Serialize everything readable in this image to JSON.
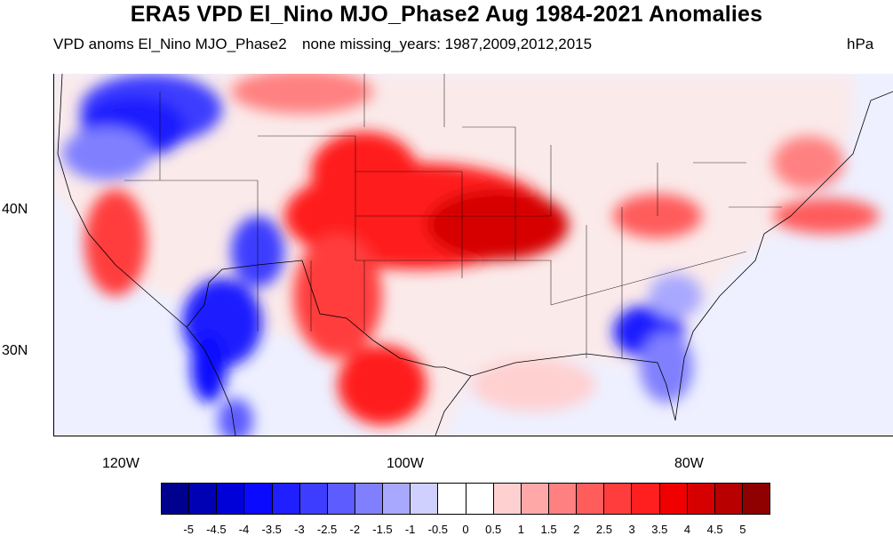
{
  "title": "ERA5 VPD El_Nino MJO_Phase2 Aug 1984-2021 Anomalies",
  "left_subtitle": "VPD anoms El_Nino MJO_Phase2",
  "center_subtitle": "none missing_years: 1987,2009,2012,2015",
  "units": "hPa",
  "lat_labels": [
    "40N",
    "30N"
  ],
  "lon_labels": [
    "120W",
    "100W",
    "80W"
  ],
  "colorbar": {
    "colors": [
      "#00008f",
      "#0000b5",
      "#0000d9",
      "#0a0aff",
      "#1f1fff",
      "#3d3dff",
      "#5c5cff",
      "#8080ff",
      "#a8a8ff",
      "#d0d0ff",
      "#ffffff",
      "#ffffff",
      "#ffd0d0",
      "#ffa8a8",
      "#ff8080",
      "#ff5c5c",
      "#ff3d3d",
      "#ff1f1f",
      "#f00000",
      "#d60000",
      "#b80000",
      "#8f0000"
    ],
    "labels": [
      "-5",
      "-4.5",
      "-4",
      "-3.5",
      "-3",
      "-2.5",
      "-2",
      "-1.5",
      "-1",
      "-0.5",
      "0",
      "0.5",
      "1",
      "1.5",
      "2",
      "2.5",
      "3",
      "3.5",
      "4",
      "4.5",
      "5"
    ]
  },
  "regions": {
    "northwest_dry": "#3d3dff",
    "southwest_wet": "#1f1fff",
    "plains_hot": "#e00000",
    "southeast_wet": "#3d3dff",
    "ocean_mild": "#d0d0ff",
    "light_red": "#ffa8a8"
  }
}
